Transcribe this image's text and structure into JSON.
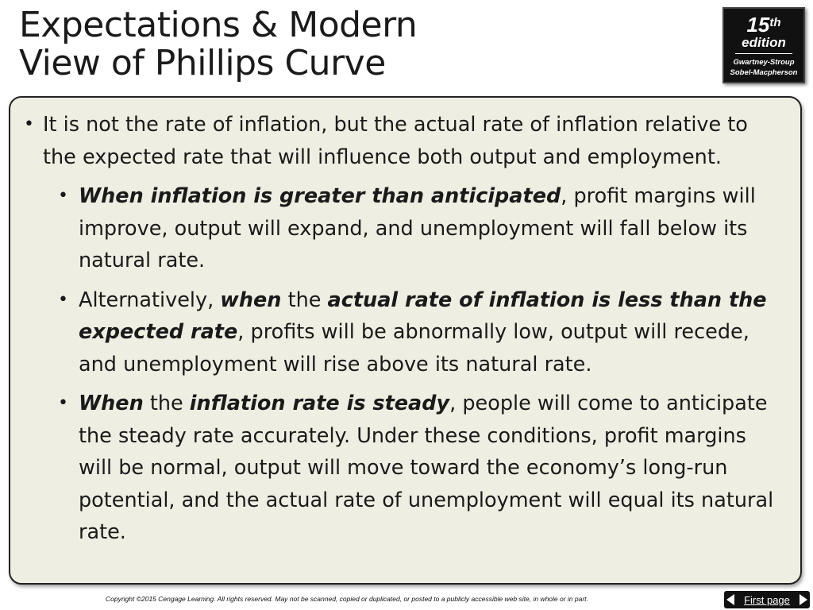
{
  "title": {
    "line1": "Expectations & Modern",
    "line2": "View of Phillips Curve"
  },
  "badge": {
    "number": "15",
    "suffix": "th",
    "edition": "edition",
    "author1": "Gwartney-Stroup",
    "author2": "Sobel-Macpherson"
  },
  "bullets": {
    "main": "It is not the rate of inflation, but the actual rate of inflation relative to the expected rate that will influence both output and employment.",
    "sub1": {
      "b1": "When inflation is greater than anticipated",
      "t1": ", profit margins will improve, output will expand, and unemployment will fall below its natural rate."
    },
    "sub2": {
      "t1": "Alternatively, ",
      "b1": "when",
      "t2": " the ",
      "b2": "actual rate of inflation is less than the expected rate",
      "t3": ", profits will be abnormally low, output will recede, and unemployment will rise above its natural rate."
    },
    "sub3": {
      "b1": "When",
      "t1": " the ",
      "b2": "inflation rate is steady",
      "t2": ", people will come to anticipate the steady rate accurately.  Under these conditions, profit margins will be normal, output will move toward the economy’s long-run potential, and the actual rate of unemployment will equal its natural rate."
    }
  },
  "footer": {
    "copyright": "Copyright ©2015 Cengage Learning. All rights reserved. May not be scanned, copied or duplicated, or posted to a publicly accessible web site, in whole or in part."
  },
  "nav": {
    "first_page": "First page"
  },
  "colors": {
    "content_bg": "#eeeee2",
    "badge_bg": "#111111"
  }
}
